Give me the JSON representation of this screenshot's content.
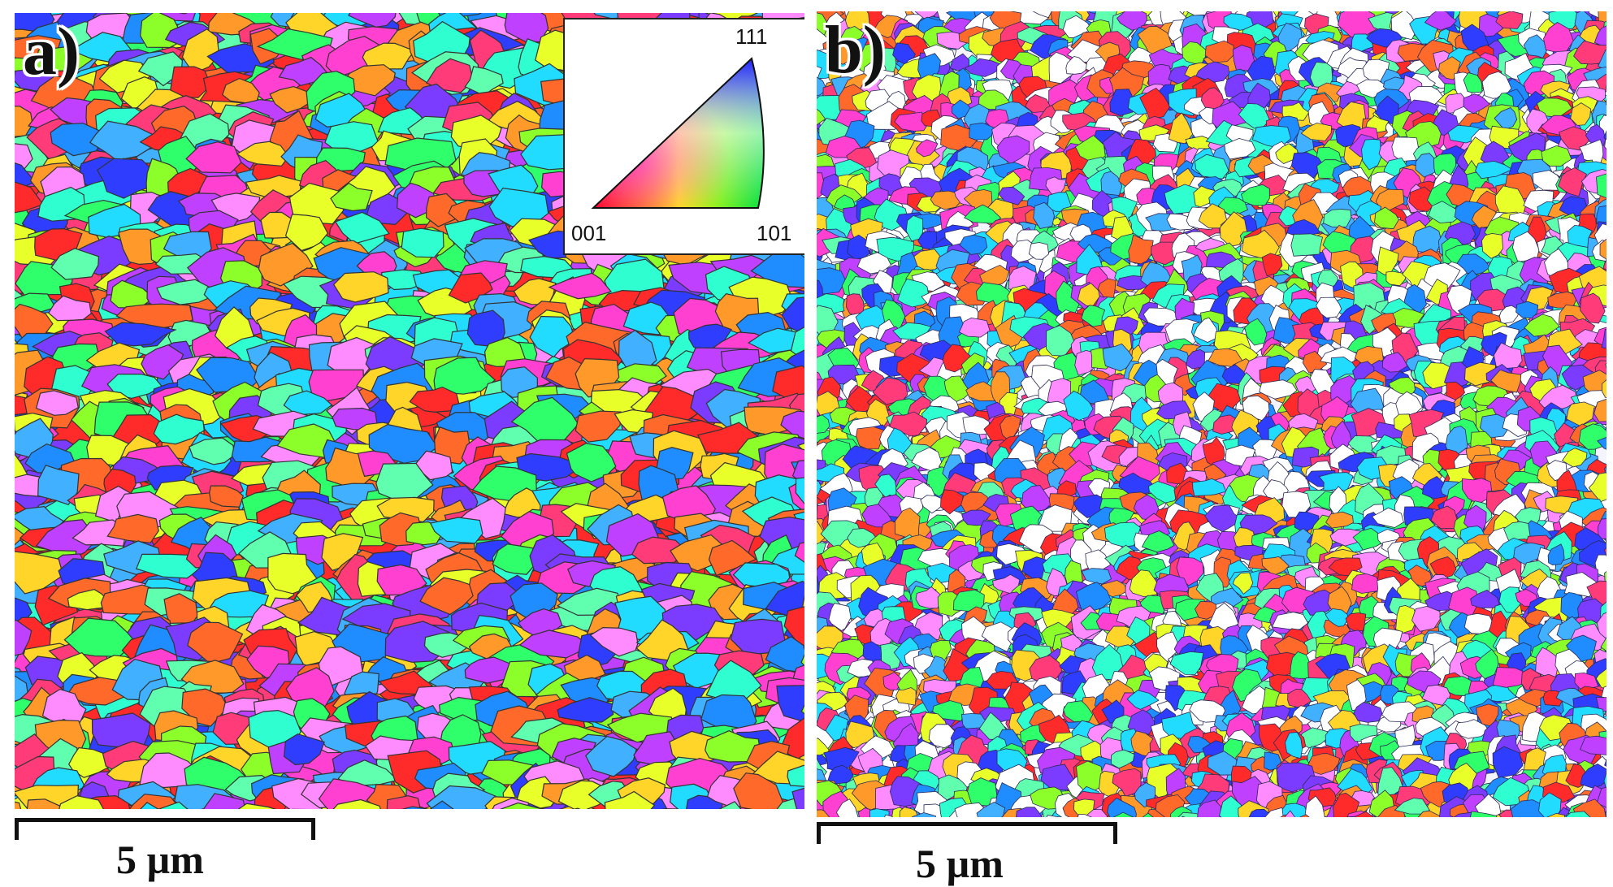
{
  "panels": [
    {
      "label": "a)",
      "scale_label": "5 µm"
    },
    {
      "label": "b)",
      "scale_label": "5 µm"
    }
  ],
  "legend": {
    "corner_111": "111",
    "corner_001": "001",
    "corner_101": "101",
    "colors": {
      "001": "#ff0000",
      "101": "#00e040",
      "111": "#2020ff"
    }
  },
  "palette": [
    "#ff2a2a",
    "#ff3b7a",
    "#ff40d0",
    "#c040ff",
    "#7b3cff",
    "#2f3dff",
    "#1f8cff",
    "#22dcff",
    "#2fffd0",
    "#2fff6a",
    "#8cff2a",
    "#e8ff2a",
    "#ffd52a",
    "#ff9a2a",
    "#ff6a2a",
    "#ff8cff",
    "#60ffb0",
    "#40b0ff"
  ]
}
